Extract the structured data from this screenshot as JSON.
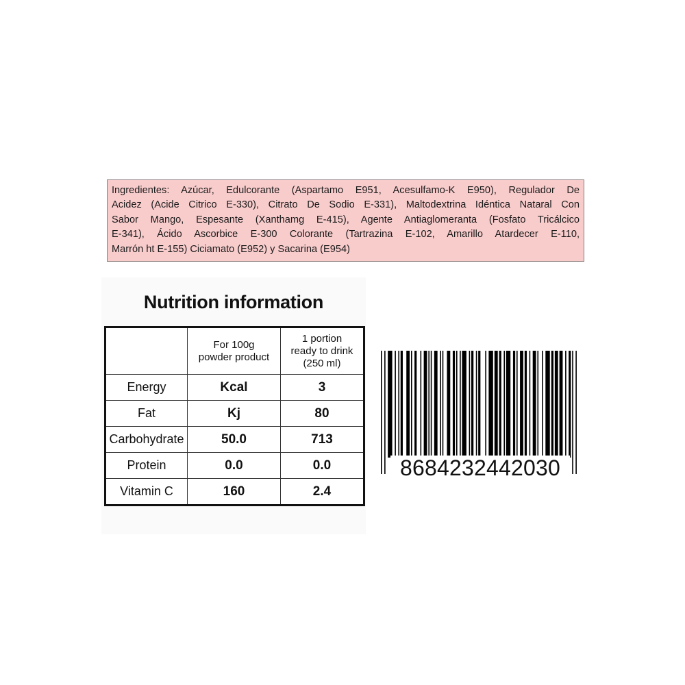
{
  "ingredients": {
    "lines": [
      "Ingredientes: Azúcar, Edulcorante (Aspartamo E951, Acesulfamo-K E950), Regulador De",
      "Acidez (Acide Citrico E-330), Citrato De Sodio E-331), Maltodextrina Idéntica Nataral Con",
      "Sabor Mango, Espesante (Xanthamg E-415), Agente Antiaglomeranta (Fosfato Tricálcico",
      "E-341), Ácido Ascorbice E-300 Colorante (Tartrazina E-102, Amarillo Atardecer E-110,",
      "Marrón ht E-155) Ciciamato (E952) y Sacarina (E954)"
    ],
    "background_color": "#f9cccc"
  },
  "nutrition": {
    "title": "Nutrition information",
    "headers": [
      "",
      "For 100g powder product",
      "1 portion ready to drink (250 ml)"
    ],
    "rows": [
      [
        "Energy",
        "Kcal",
        "3"
      ],
      [
        "Fat",
        "Kj",
        "80"
      ],
      [
        "Carbohydrate",
        "50.0",
        "713"
      ],
      [
        "Protein",
        "0.0",
        "0.0"
      ],
      [
        "Vitamin C",
        "160",
        "2.4"
      ]
    ]
  },
  "barcode": {
    "number": "8684232442030"
  }
}
